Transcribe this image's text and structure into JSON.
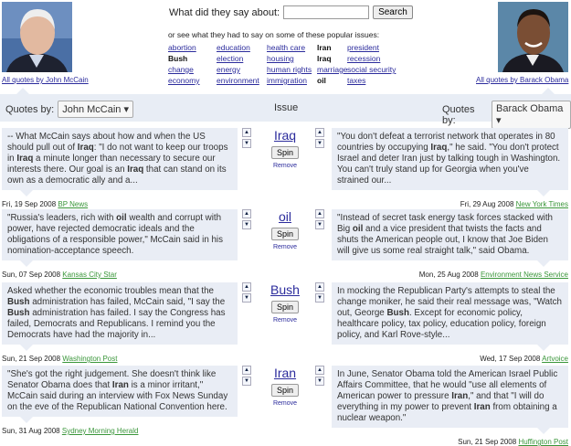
{
  "header": {
    "search_label": "What did they say about:",
    "search_value": "",
    "search_button": "Search",
    "popular_intro": "or see what they had to say on some of these popular issues:",
    "issues": [
      {
        "label": "abortion",
        "active": false
      },
      {
        "label": "education",
        "active": false
      },
      {
        "label": "health care",
        "active": false
      },
      {
        "label": "Iran",
        "active": true
      },
      {
        "label": "president",
        "active": false
      },
      {
        "label": "Bush",
        "active": true
      },
      {
        "label": "election",
        "active": false
      },
      {
        "label": "housing",
        "active": false
      },
      {
        "label": "Iraq",
        "active": true
      },
      {
        "label": "recession",
        "active": false
      },
      {
        "label": "change",
        "active": false
      },
      {
        "label": "energy",
        "active": false
      },
      {
        "label": "human rights",
        "active": false
      },
      {
        "label": "marriage",
        "active": false
      },
      {
        "label": "social security",
        "active": false
      },
      {
        "label": "economy",
        "active": false
      },
      {
        "label": "environment",
        "active": false
      },
      {
        "label": "immigration",
        "active": false
      },
      {
        "label": "oil",
        "active": true
      },
      {
        "label": "taxes",
        "active": false
      }
    ]
  },
  "left": {
    "caption": "All quotes by John McCain",
    "quotes_by": "Quotes by:",
    "selected": "John McCain"
  },
  "right": {
    "caption": "All quotes by Barack Obama",
    "quotes_by": "Quotes by:",
    "selected": "Barack Obama"
  },
  "issue_header": "Issue",
  "spin_label": "Spin",
  "remove_label": "Remove",
  "colors": {
    "accent_bg": "#e8edf5",
    "link": "#2b2b9c",
    "source_link": "#3a963a"
  },
  "rows": [
    {
      "issue": "Iraq",
      "left": {
        "segments": [
          {
            "t": "-- What McCain says about how and when the US should pull out of "
          },
          {
            "t": "Iraq",
            "b": true
          },
          {
            "t": ": \"I do not want to keep our troops in "
          },
          {
            "t": "Iraq",
            "b": true
          },
          {
            "t": " a minute longer than necessary to secure our interests there. Our goal is an "
          },
          {
            "t": "Iraq",
            "b": true
          },
          {
            "t": " that can stand on its own as a democratic ally and a..."
          }
        ],
        "date": "Fri, 19 Sep 2008",
        "source": "BP News"
      },
      "right": {
        "segments": [
          {
            "t": "\"You don't defeat a terrorist network that operates in 80 countries by occupying "
          },
          {
            "t": "Iraq",
            "b": true
          },
          {
            "t": ",\" he said. \"You don't protect Israel and deter Iran just by talking tough in Washington. You can't truly stand up for Georgia when you've strained our..."
          }
        ],
        "date": "Fri, 29 Aug 2008",
        "source": "New York Times"
      }
    },
    {
      "issue": "oil",
      "left": {
        "segments": [
          {
            "t": "\"Russia's leaders, rich with "
          },
          {
            "t": "oil",
            "b": true
          },
          {
            "t": " wealth and corrupt with power, have rejected democratic ideals and the obligations of a responsible power,\" McCain said in his nomination-acceptance speech."
          }
        ],
        "date": "Sun, 07 Sep 2008",
        "source": "Kansas City Star"
      },
      "right": {
        "segments": [
          {
            "t": "\"Instead of secret task energy task forces stacked with Big "
          },
          {
            "t": "oil",
            "b": true
          },
          {
            "t": " and a vice president that twists the facts and shuts the American people out, I know that Joe Biden will give us some real straight talk,\" said Obama."
          }
        ],
        "date": "Mon, 25 Aug 2008",
        "source": "Environment News Service"
      }
    },
    {
      "issue": "Bush",
      "left": {
        "segments": [
          {
            "t": "Asked whether the economic troubles mean that the "
          },
          {
            "t": "Bush",
            "b": true
          },
          {
            "t": " administration has failed, McCain said, \"I say the "
          },
          {
            "t": "Bush",
            "b": true
          },
          {
            "t": " administration has failed. I say the Congress has failed, Democrats and Republicans. I remind you the Democrats have had the majority in..."
          }
        ],
        "date": "Sun, 21 Sep 2008",
        "source": "Washington Post"
      },
      "right": {
        "segments": [
          {
            "t": "In mocking the Republican Party's attempts to steal the change moniker, he said their real message was, \"Watch out, George "
          },
          {
            "t": "Bush",
            "b": true
          },
          {
            "t": ". Except for economic policy, healthcare policy, tax policy, education policy, foreign policy, and Karl Rove-style..."
          }
        ],
        "date": "Wed, 17 Sep 2008",
        "source": "Artvoice"
      }
    },
    {
      "issue": "Iran",
      "left": {
        "segments": [
          {
            "t": "\"She's got the right judgement. She doesn't think like Senator Obama does that "
          },
          {
            "t": "Iran",
            "b": true
          },
          {
            "t": " is a minor irritant,\" McCain said during an interview with Fox News Sunday on the eve of the Republican National Convention here."
          }
        ],
        "date": "Sun, 31 Aug 2008",
        "source": "Sydney Morning Herald"
      },
      "right": {
        "segments": [
          {
            "t": "In June, Senator Obama told the American Israel Public Affairs Committee, that he would \"use all elements of American power to pressure "
          },
          {
            "t": "Iran",
            "b": true
          },
          {
            "t": ",\" and that \"I will do everything in my power to prevent "
          },
          {
            "t": "Iran",
            "b": true
          },
          {
            "t": " from obtaining a nuclear weapon.\""
          }
        ],
        "date": "Sun, 21 Sep 2008",
        "source": "Huffington Post"
      }
    }
  ]
}
